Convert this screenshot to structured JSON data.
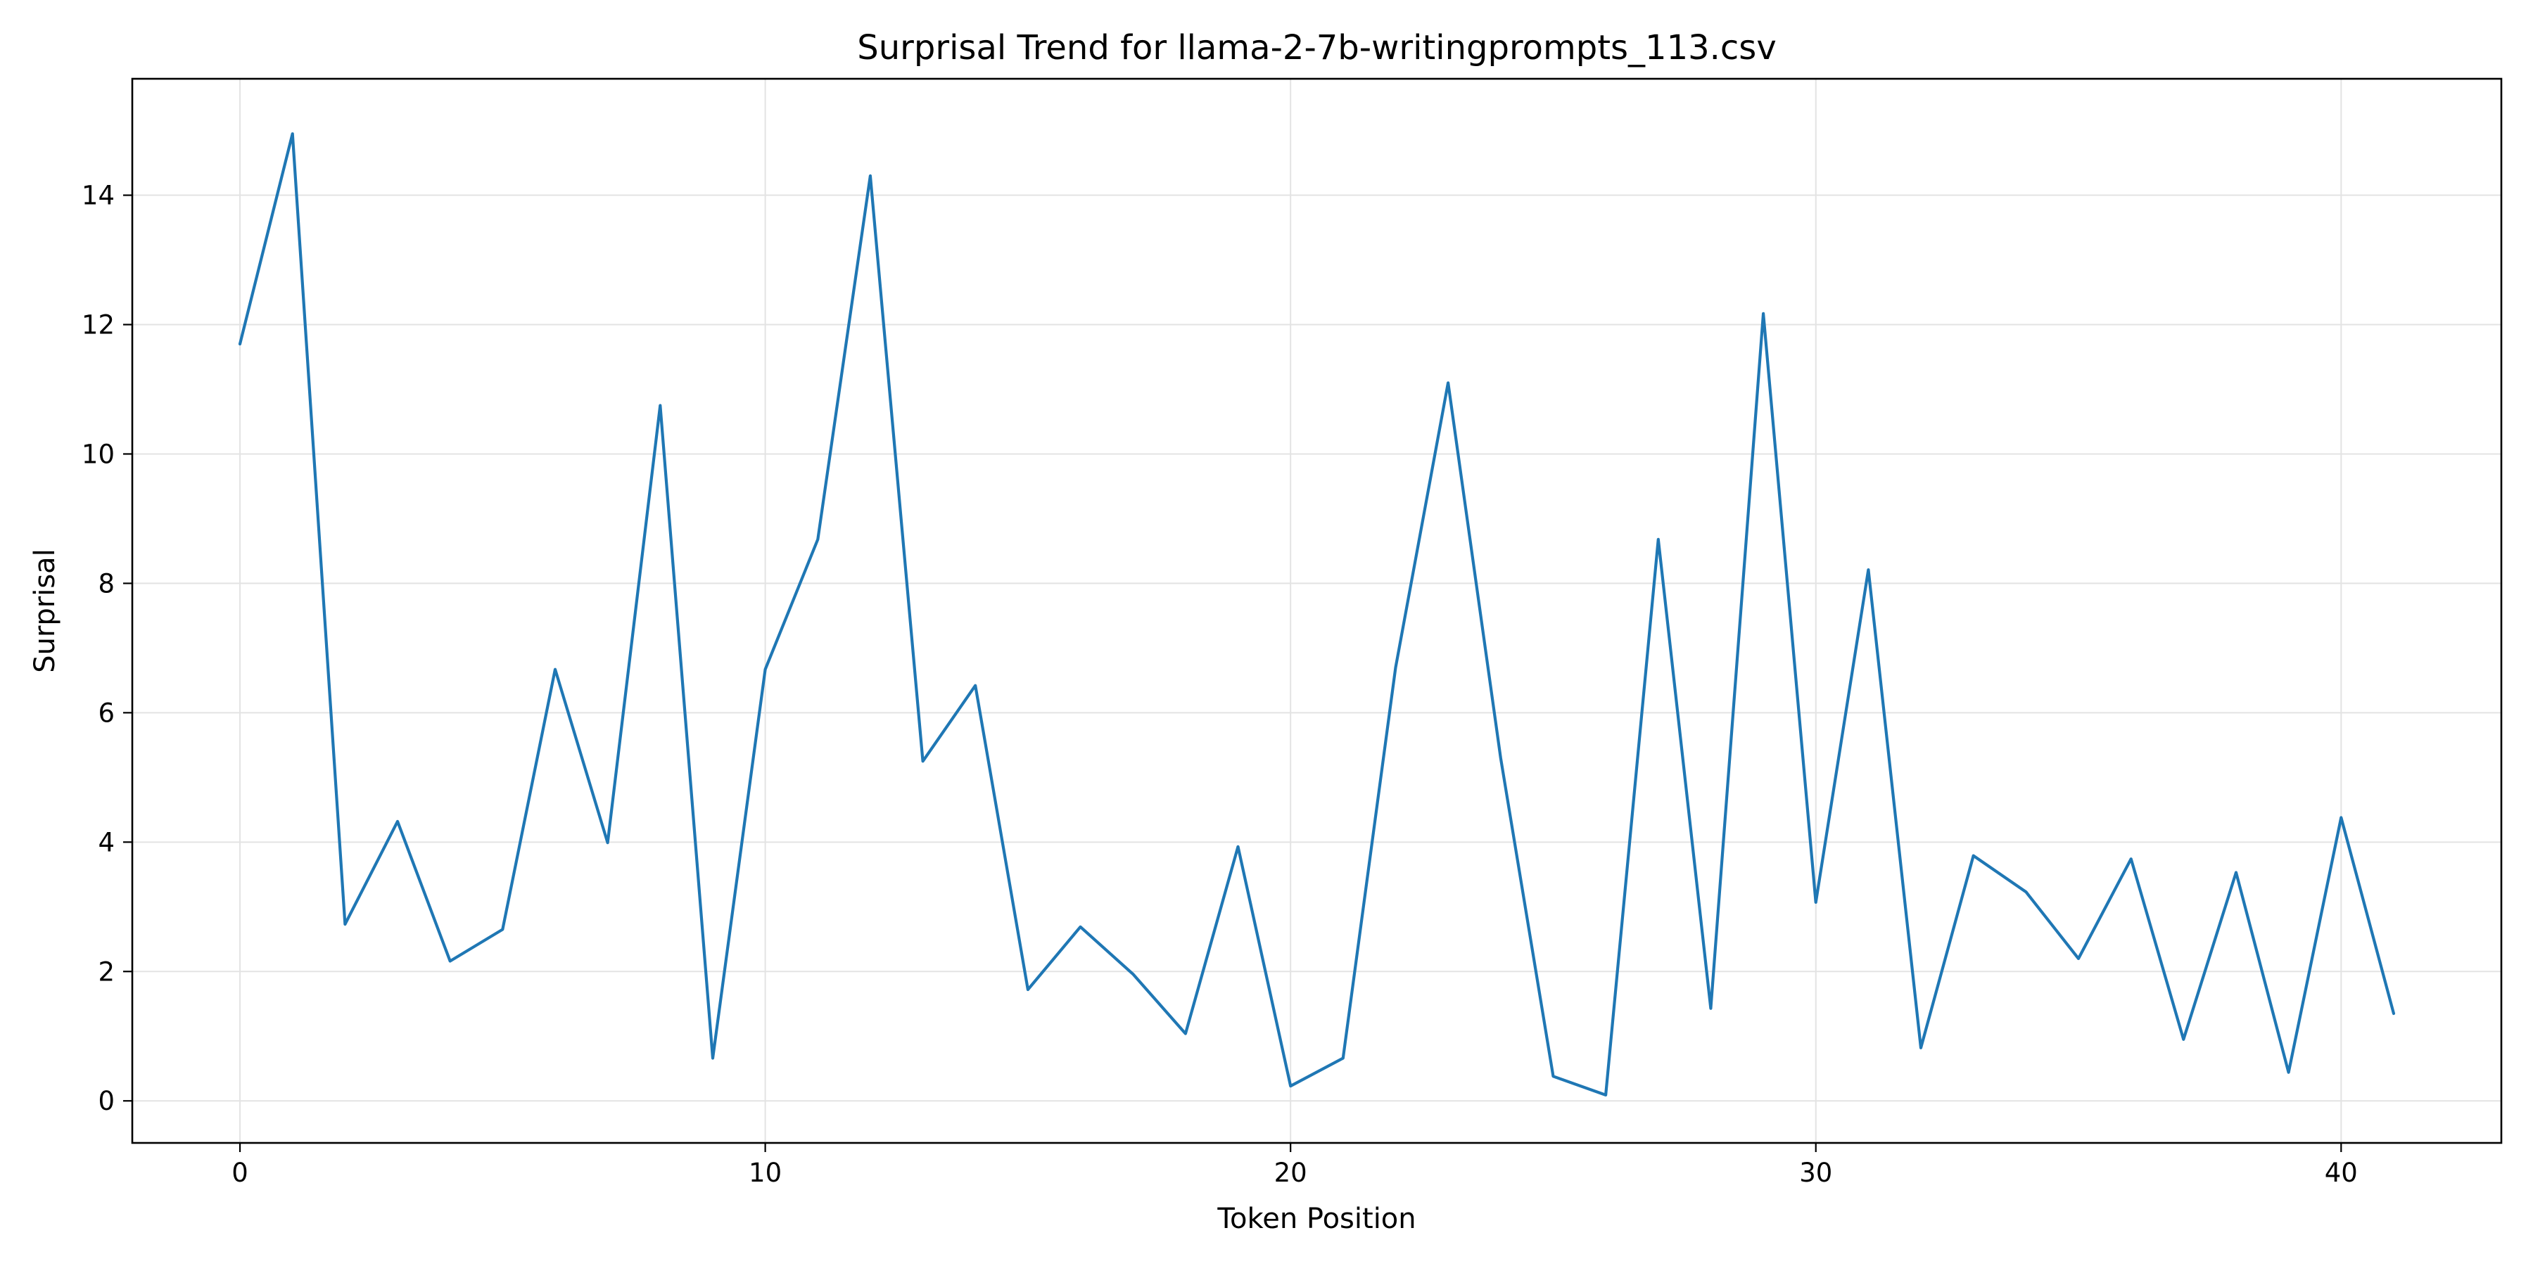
{
  "chart_data": {
    "type": "line",
    "title": "Surprisal Trend for llama-2-7b-writingprompts_113.csv",
    "xlabel": "Token Position",
    "ylabel": "Surprisal",
    "xlim": [
      -2.05,
      43.05
    ],
    "ylim": [
      -0.65,
      15.8
    ],
    "xticks": [
      0,
      10,
      20,
      30,
      40
    ],
    "yticks": [
      0,
      2,
      4,
      6,
      8,
      10,
      12,
      14
    ],
    "grid": true,
    "legend": "none",
    "series": [
      {
        "color": "#1f77b4",
        "x": [
          0,
          1,
          2,
          3,
          4,
          5,
          6,
          7,
          8,
          9,
          10,
          11,
          12,
          13,
          14,
          15,
          16,
          17,
          18,
          19,
          20,
          21,
          22,
          23,
          24,
          25,
          26,
          27,
          28,
          29,
          30,
          31,
          32,
          33,
          34,
          35,
          36,
          37,
          38,
          39,
          40,
          41
        ],
        "values": [
          11.7,
          14.95,
          2.73,
          4.32,
          2.16,
          2.65,
          6.67,
          3.99,
          10.75,
          0.66,
          6.67,
          8.68,
          14.3,
          5.25,
          6.42,
          1.72,
          2.69,
          1.96,
          1.04,
          3.93,
          0.23,
          0.66,
          6.7,
          11.1,
          5.3,
          0.38,
          0.09,
          8.68,
          1.43,
          12.17,
          3.07,
          8.21,
          0.82,
          3.79,
          3.23,
          2.2,
          3.74,
          0.95,
          3.53,
          0.44,
          4.38,
          1.35
        ]
      }
    ]
  }
}
